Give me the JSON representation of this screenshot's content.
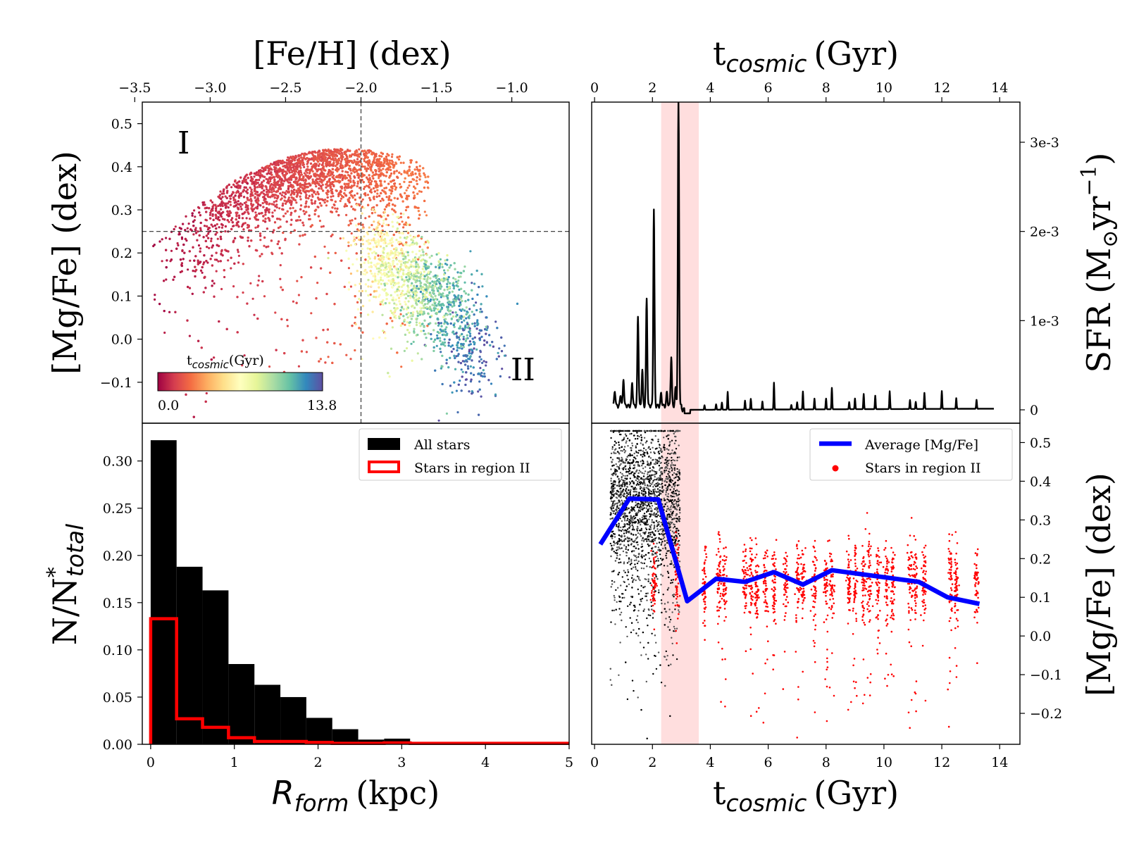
{
  "chart_data": [
    {
      "type": "scatter",
      "panel": "top-left",
      "xlabel": "[Fe/H] (dex)",
      "ylabel": "[Mg/Fe] (dex)",
      "xlim": [
        -3.45,
        -0.62
      ],
      "ylim": [
        -0.195,
        0.55
      ],
      "xticks": [
        "−3.5",
        "−3.0",
        "−2.5",
        "−2.0",
        "−1.5",
        "−1.0"
      ],
      "xtick_values": [
        -3.5,
        -3.0,
        -2.5,
        -2.0,
        -1.5,
        -1.0
      ],
      "yticks": [
        "0.5",
        "0.4",
        "0.3",
        "0.2",
        "0.1",
        "0.0",
        "−0.1"
      ],
      "ytick_values": [
        0.5,
        0.4,
        0.3,
        0.2,
        0.1,
        0.0,
        -0.1
      ],
      "guide_lines": {
        "feh": -2.0,
        "mgfe": 0.25
      },
      "region_labels": [
        "I",
        "II"
      ],
      "colorbar": {
        "label": "t",
        "label_sub": "cosmic",
        "label_unit": "(Gyr)",
        "min_label": "0.0",
        "max_label": "13.8",
        "range": [
          0.0,
          13.8
        ]
      }
    },
    {
      "type": "line",
      "panel": "top-right",
      "xlabel": "t",
      "xlabel_sub": "cosmic",
      "xlabel_unit": "(Gyr)",
      "ylabel": "SFR (M",
      "ylabel_sub": "⊙",
      "ylabel_unit": "yr",
      "ylabel_sup": "−1",
      "ylabel_close": ")",
      "xlim": [
        -0.1,
        14.7
      ],
      "ylim": [
        -0.00015,
        0.00345
      ],
      "xticks": [
        "0",
        "2",
        "4",
        "6",
        "8",
        "10",
        "12",
        "14"
      ],
      "xtick_values": [
        0,
        2,
        4,
        6,
        8,
        10,
        12,
        14
      ],
      "yticks": [
        "3e-3",
        "2e-3",
        "1e-3",
        "0"
      ],
      "ytick_values": [
        0.003,
        0.002,
        0.001,
        0.0
      ],
      "shaded_band": [
        2.3,
        3.6
      ],
      "peaks": [
        {
          "t": 0.7,
          "sfr": 0.00017
        },
        {
          "t": 0.9,
          "sfr": 0.00012
        },
        {
          "t": 1.0,
          "sfr": 0.0003
        },
        {
          "t": 1.3,
          "sfr": 0.00026
        },
        {
          "t": 1.5,
          "sfr": 0.001
        },
        {
          "t": 1.65,
          "sfr": 0.0004
        },
        {
          "t": 1.8,
          "sfr": 0.0012
        },
        {
          "t": 2.05,
          "sfr": 0.0022
        },
        {
          "t": 2.3,
          "sfr": 0.00014
        },
        {
          "t": 2.5,
          "sfr": 0.00015
        },
        {
          "t": 2.65,
          "sfr": 0.00055
        },
        {
          "t": 2.8,
          "sfr": 0.0002
        },
        {
          "t": 2.9,
          "sfr": 0.0034
        },
        {
          "t": 3.2,
          "sfr": 0.0
        },
        {
          "t": 3.8,
          "sfr": 5e-05
        },
        {
          "t": 4.2,
          "sfr": 6e-05
        },
        {
          "t": 4.4,
          "sfr": 8e-05
        },
        {
          "t": 4.6,
          "sfr": 0.0002
        },
        {
          "t": 5.2,
          "sfr": 0.0001
        },
        {
          "t": 5.4,
          "sfr": 0.00012
        },
        {
          "t": 5.8,
          "sfr": 9e-05
        },
        {
          "t": 6.2,
          "sfr": 0.0003
        },
        {
          "t": 6.8,
          "sfr": 5e-05
        },
        {
          "t": 7.0,
          "sfr": 8e-05
        },
        {
          "t": 7.2,
          "sfr": 0.0002
        },
        {
          "t": 7.6,
          "sfr": 0.00012
        },
        {
          "t": 8.0,
          "sfr": 0.00012
        },
        {
          "t": 8.2,
          "sfr": 0.00024
        },
        {
          "t": 8.8,
          "sfr": 8e-05
        },
        {
          "t": 9.0,
          "sfr": 0.00012
        },
        {
          "t": 9.3,
          "sfr": 0.00017
        },
        {
          "t": 9.7,
          "sfr": 0.00015
        },
        {
          "t": 10.2,
          "sfr": 0.0002
        },
        {
          "t": 10.9,
          "sfr": 0.0001
        },
        {
          "t": 11.1,
          "sfr": 8e-05
        },
        {
          "t": 11.4,
          "sfr": 0.00018
        },
        {
          "t": 12.0,
          "sfr": 0.0002
        },
        {
          "t": 12.5,
          "sfr": 0.00012
        },
        {
          "t": 13.2,
          "sfr": 0.0001
        }
      ],
      "baseline": 0.0
    },
    {
      "type": "bar",
      "panel": "bottom-left",
      "xlabel": "R",
      "xlabel_sub": "form",
      "xlabel_unit": "(kpc)",
      "ylabel": "N/N",
      "ylabel_sup": "*",
      "ylabel_sub": "total",
      "xlim": [
        -0.1,
        5.0
      ],
      "ylim": [
        0.0,
        0.34
      ],
      "xticks": [
        "0",
        "1",
        "2",
        "3",
        "4",
        "5"
      ],
      "xtick_values": [
        0,
        1,
        2,
        3,
        4,
        5
      ],
      "yticks": [
        "0.30",
        "0.25",
        "0.20",
        "0.15",
        "0.10",
        "0.05",
        "0.00"
      ],
      "ytick_values": [
        0.3,
        0.25,
        0.2,
        0.15,
        0.1,
        0.05,
        0.0
      ],
      "bin_edges": [
        0.0,
        0.31,
        0.62,
        0.93,
        1.24,
        1.55,
        1.86,
        2.17,
        2.48,
        2.79,
        3.1,
        3.41,
        3.72,
        4.03,
        4.34,
        4.65,
        5.0
      ],
      "series": [
        {
          "name": "All stars",
          "values": [
            0.322,
            0.188,
            0.163,
            0.085,
            0.063,
            0.05,
            0.028,
            0.016,
            0.005,
            0.006,
            0.001,
            0.0005,
            0.0005,
            0.0005,
            0.0005,
            0.0005
          ]
        },
        {
          "name": "Stars in region II",
          "values": [
            0.133,
            0.027,
            0.018,
            0.007,
            0.003,
            0.003,
            0.002,
            0.001,
            0.001,
            0.0015,
            0.001,
            0.001,
            0.001,
            0.001,
            0.001,
            0.001
          ]
        }
      ]
    },
    {
      "type": "scatter",
      "panel": "bottom-right",
      "xlabel": "t",
      "xlabel_sub": "cosmic",
      "xlabel_unit": "(Gyr)",
      "ylabel": "[Mg/Fe] (dex)",
      "xlim": [
        -0.1,
        14.7
      ],
      "ylim": [
        -0.28,
        0.55
      ],
      "xticks": [
        "0",
        "2",
        "4",
        "6",
        "8",
        "10",
        "12",
        "14"
      ],
      "xtick_values": [
        0,
        2,
        4,
        6,
        8,
        10,
        12,
        14
      ],
      "yticks": [
        "0.5",
        "0.4",
        "0.3",
        "0.2",
        "0.1",
        "0.0",
        "−0.1",
        "−0.2"
      ],
      "ytick_values": [
        0.5,
        0.4,
        0.3,
        0.2,
        0.1,
        0.0,
        -0.1,
        -0.2
      ],
      "shaded_band": [
        2.3,
        3.6
      ],
      "series": [
        {
          "name": "Average [Mg/Fe]",
          "x": [
            0.2,
            1.2,
            2.2,
            3.2,
            4.2,
            5.2,
            6.2,
            7.2,
            8.2,
            9.2,
            10.2,
            11.2,
            12.2,
            13.3
          ],
          "values": [
            0.237,
            0.355,
            0.353,
            0.09,
            0.148,
            0.14,
            0.165,
            0.133,
            0.17,
            0.16,
            0.15,
            0.14,
            0.1,
            0.083
          ]
        },
        {
          "name": "Stars in region II"
        }
      ]
    }
  ]
}
